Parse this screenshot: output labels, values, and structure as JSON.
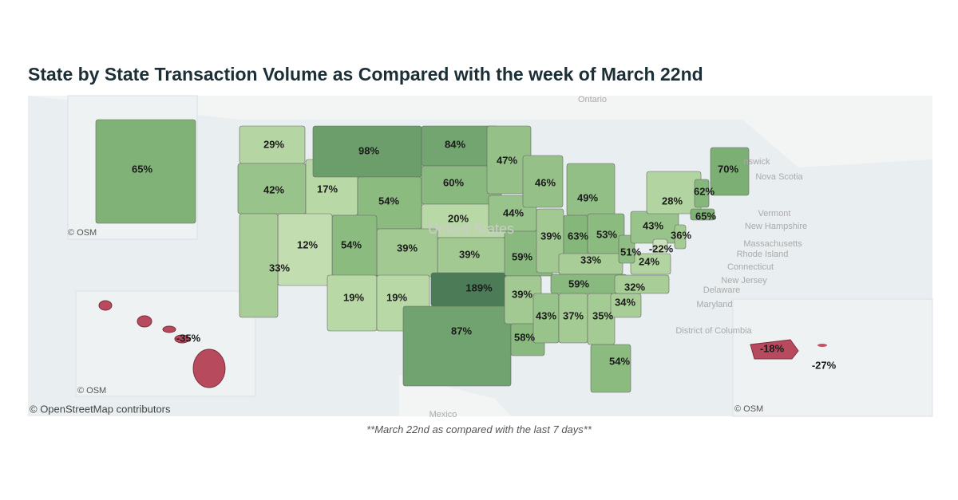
{
  "title": "State by State Transaction Volume as Compared with the week of March 22nd",
  "footnote": "**March 22nd as compared with the last 7 days**",
  "regions": [
    {
      "label": "29%",
      "color": "#b5d6a3"
    },
    {
      "label": "42%",
      "color": "#98c38a"
    },
    {
      "label": "17%",
      "color": "#b8d8a6"
    },
    {
      "label": "98%",
      "color": "#6b9e6b"
    },
    {
      "label": "54%",
      "color": "#8cbb80"
    },
    {
      "label": "84%",
      "color": "#72a570"
    },
    {
      "label": "60%",
      "color": "#89b97e"
    },
    {
      "label": "20%",
      "color": "#b8d8a6"
    },
    {
      "label": "39%",
      "color": "#a3c993"
    },
    {
      "label": "39%",
      "color": "#a3c993"
    },
    {
      "label": "54%",
      "color": "#8cbb80"
    },
    {
      "label": "12%",
      "color": "#c2ddb0"
    },
    {
      "label": "33%",
      "color": "#a8cd96"
    },
    {
      "label": "19%",
      "color": "#b8d8a6"
    },
    {
      "label": "19%",
      "color": "#b8d8a6"
    },
    {
      "label": "189%",
      "color": "#4b7b57"
    },
    {
      "label": "87%",
      "color": "#70a36f"
    },
    {
      "label": "47%",
      "color": "#95c188"
    },
    {
      "label": "44%",
      "color": "#98c38a"
    },
    {
      "label": "59%",
      "color": "#89b97e"
    },
    {
      "label": "39%",
      "color": "#a3c993"
    },
    {
      "label": "58%",
      "color": "#89b97e"
    },
    {
      "label": "46%",
      "color": "#95c188"
    },
    {
      "label": "39%",
      "color": "#a3c993"
    },
    {
      "label": "49%",
      "color": "#92bf86"
    },
    {
      "label": "63%",
      "color": "#85b77b"
    },
    {
      "label": "53%",
      "color": "#8cbb80"
    },
    {
      "label": "33%",
      "color": "#a8cd96"
    },
    {
      "label": "59%",
      "color": "#89b97e"
    },
    {
      "label": "43%",
      "color": "#98c38a"
    },
    {
      "label": "37%",
      "color": "#a5cb94"
    },
    {
      "label": "35%",
      "color": "#a5cb94"
    },
    {
      "label": "54%",
      "color": "#8cbb80"
    },
    {
      "label": "34%",
      "color": "#a8cd96"
    },
    {
      "label": "32%",
      "color": "#a8cd96"
    },
    {
      "label": "24%",
      "color": "#b2d4a0"
    },
    {
      "label": "51%",
      "color": "#8fbd83"
    },
    {
      "label": "43%",
      "color": "#98c38a"
    },
    {
      "label": "28%",
      "color": "#b2d4a0"
    },
    {
      "label": "-22%",
      "color": "#c9e0b8"
    },
    {
      "label": "36%",
      "color": "#a5cb94"
    },
    {
      "label": "62%",
      "color": "#85b77b"
    },
    {
      "label": "70%",
      "color": "#7caf74"
    },
    {
      "label": "65%",
      "color": "#80b277"
    },
    {
      "label": "65%",
      "color": "#80b277"
    },
    {
      "label": "-35%",
      "color": "#b84a5e"
    },
    {
      "label": "-18%",
      "color": "#b84a5e"
    },
    {
      "label": "-27%",
      "color": "#c45266"
    }
  ],
  "place_labels": [
    "Ontario",
    "nswick",
    "Nova Scotia",
    "United States",
    "Vermont",
    "New Hampshire",
    "Massachusetts",
    "Rhode Island",
    "Connecticut",
    "New Jersey",
    "Delaware",
    "Maryland",
    "District of Columbia",
    "Mexico"
  ],
  "credits": [
    "© OSM",
    "© OSM",
    "© OSM",
    "© OpenStreetMap contributors"
  ]
}
